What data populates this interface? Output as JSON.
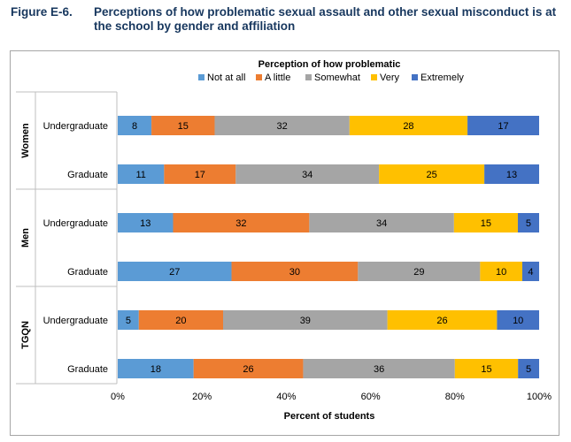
{
  "figure": {
    "number": "Figure E-6.",
    "title": "Perceptions of how problematic sexual assault and other sexual misconduct is at the school by gender and affiliation"
  },
  "chart_data": {
    "type": "bar",
    "orientation": "horizontal",
    "stacked": "percent",
    "legend_title": "Perception of how problematic",
    "legend_position": "top",
    "xlabel": "Percent of students",
    "xlim": [
      0,
      100
    ],
    "x_ticks": [
      "0%",
      "20%",
      "40%",
      "60%",
      "80%",
      "100%"
    ],
    "grid": false,
    "groups": [
      {
        "name": "Women",
        "categories": [
          "Undergraduate",
          "Graduate"
        ]
      },
      {
        "name": "Men",
        "categories": [
          "Undergraduate",
          "Graduate"
        ]
      },
      {
        "name": "TGQN",
        "categories": [
          "Undergraduate",
          "Graduate"
        ]
      }
    ],
    "series": [
      {
        "name": "Not at all",
        "color": "#5b9bd5",
        "values": [
          8,
          11,
          13,
          27,
          5,
          18
        ]
      },
      {
        "name": "A little",
        "color": "#ed7d31",
        "values": [
          15,
          17,
          32,
          30,
          20,
          26
        ]
      },
      {
        "name": "Somewhat",
        "color": "#a5a5a5",
        "values": [
          32,
          34,
          34,
          29,
          39,
          36
        ]
      },
      {
        "name": "Very",
        "color": "#ffc000",
        "values": [
          28,
          25,
          15,
          10,
          26,
          15
        ]
      },
      {
        "name": "Extremely",
        "color": "#4472c4",
        "values": [
          17,
          13,
          5,
          4,
          10,
          5
        ]
      }
    ]
  }
}
